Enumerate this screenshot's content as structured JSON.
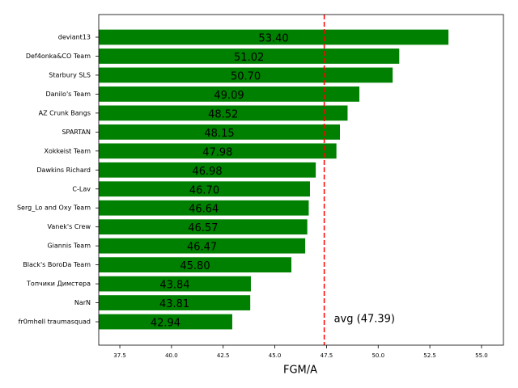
{
  "chart_data": {
    "type": "barh",
    "xlabel": "FGM/A",
    "categories": [
      "deviant13",
      "Def4onka&CO Team",
      "Starbury SLS",
      "Danilo's Team",
      "AZ Crunk Bangs",
      "SPARTAN",
      "Xokkeist Team",
      "Dawkins Richard",
      "C-Lav",
      "Serg_Lo and Oxy Team",
      "Vanek's Crew",
      "Giannis Team",
      "Black's BoroDa Team",
      "Топчики Димстера",
      "NarN",
      "fr0mhell traumasquad"
    ],
    "values": [
      53.4,
      51.02,
      50.7,
      49.09,
      48.52,
      48.15,
      47.98,
      46.98,
      46.7,
      46.64,
      46.57,
      46.47,
      45.8,
      43.84,
      43.81,
      42.94
    ],
    "value_labels": [
      "53.40",
      "51.02",
      "50.70",
      "49.09",
      "48.52",
      "48.15",
      "47.98",
      "46.98",
      "46.70",
      "46.64",
      "46.57",
      "46.47",
      "45.80",
      "43.84",
      "43.81",
      "42.94"
    ],
    "color": "#008000",
    "xlim": [
      36.48,
      56.06
    ],
    "xticks": [
      {
        "value": 37.5,
        "label": "37.5"
      },
      {
        "value": 40,
        "label": "40.0"
      },
      {
        "value": 42.5,
        "label": "42.5"
      },
      {
        "value": 45,
        "label": "45.0"
      },
      {
        "value": 47.5,
        "label": "47.5"
      },
      {
        "value": 50,
        "label": "50.0"
      },
      {
        "value": 52.5,
        "label": "52.5"
      },
      {
        "value": 55,
        "label": "55.0"
      }
    ],
    "avg": 47.39,
    "avg_color": "#ff0000",
    "avg_label": "avg (47.39)"
  }
}
